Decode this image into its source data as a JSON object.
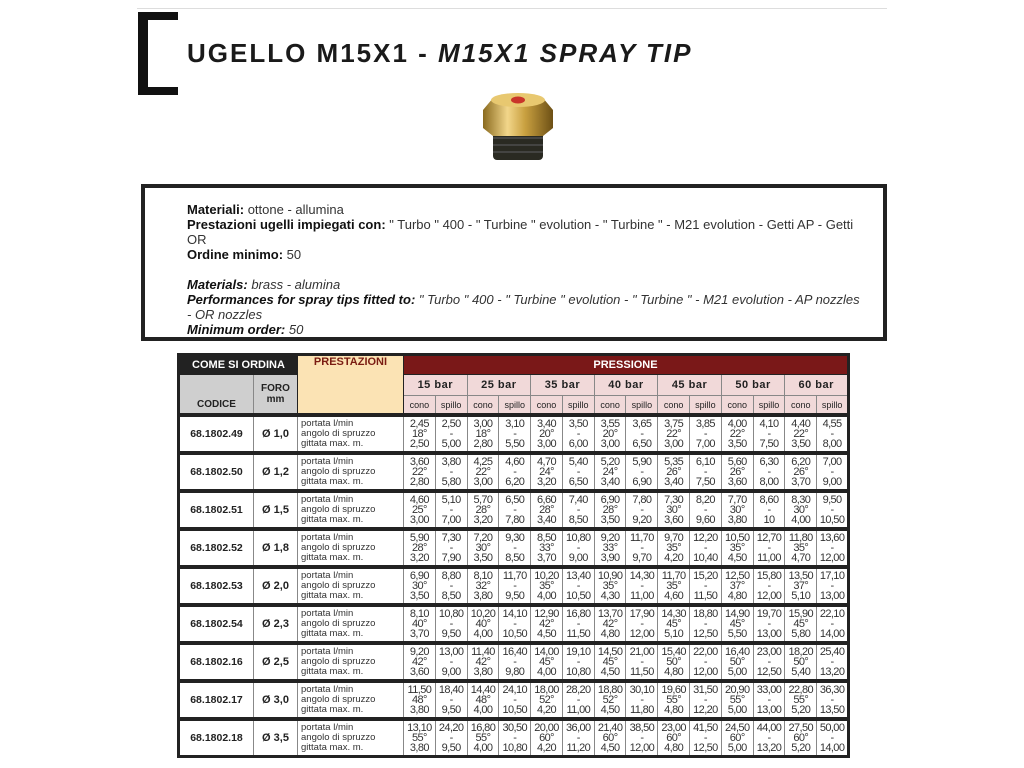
{
  "header": {
    "title_plain": "UGELLO M15X1 - ",
    "title_italic": "M15X1 SPRAY TIP"
  },
  "info": {
    "it": {
      "materials_label": "Materiali:",
      "materials": " ottone - allumina",
      "performance_label": "Prestazioni ugelli impiegati con:",
      "performance": " \" Turbo \" 400 - \" Turbine \" evolution - \" Turbine \" - M21 evolution - Getti AP - Getti OR",
      "min_order_label": "Ordine minimo:",
      "min_order": " 50"
    },
    "en": {
      "materials_label": "Materials:",
      "materials": " brass - alumina",
      "performance_label": "Performances for spray tips fitted to:",
      "performance": " \" Turbo \" 400 - \" Turbine \" evolution - \" Turbine \" - M21 evolution - AP nozzles - OR nozzles",
      "min_order_label": "Minimum order:",
      "min_order": " 50"
    }
  },
  "table": {
    "how_to_order": "COME SI ORDINA",
    "performance": "PRESTAZIONI",
    "pressure": "PRESSIONE",
    "code_header": "CODICE",
    "bore_header": "FORO",
    "bore_unit": "mm",
    "pressures": [
      "15 bar",
      "25 bar",
      "35 bar",
      "40 bar",
      "45 bar",
      "50 bar",
      "60 bar"
    ],
    "sub_cone": "cono",
    "sub_pin": "spillo",
    "perf_labels": [
      "portata l/min",
      "angolo di spruzzo",
      "gittata max. m."
    ],
    "rows": [
      {
        "code": "68.1802.49",
        "bore": "Ø 1,0",
        "values": [
          [
            "2,45",
            "18°",
            "2,50"
          ],
          [
            "2,50",
            "-",
            "5,00"
          ],
          [
            "3,00",
            "18°",
            "2,80"
          ],
          [
            "3,10",
            "-",
            "5,50"
          ],
          [
            "3,40",
            "20°",
            "3,00"
          ],
          [
            "3,50",
            "-",
            "6,00"
          ],
          [
            "3,55",
            "20°",
            "3,00"
          ],
          [
            "3,65",
            "-",
            "6,50"
          ],
          [
            "3,75",
            "22°",
            "3,00"
          ],
          [
            "3,85",
            "-",
            "7,00"
          ],
          [
            "4,00",
            "22°",
            "3,50"
          ],
          [
            "4,10",
            "-",
            "7,50"
          ],
          [
            "4,40",
            "22°",
            "3,50"
          ],
          [
            "4,55",
            "-",
            "8,00"
          ]
        ]
      },
      {
        "code": "68.1802.50",
        "bore": "Ø 1,2",
        "values": [
          [
            "3,60",
            "22°",
            "2,80"
          ],
          [
            "3,80",
            "-",
            "5,80"
          ],
          [
            "4,25",
            "22°",
            "3,00"
          ],
          [
            "4,60",
            "-",
            "6,20"
          ],
          [
            "4,70",
            "24°",
            "3,20"
          ],
          [
            "5,40",
            "-",
            "6,50"
          ],
          [
            "5,20",
            "24°",
            "3,40"
          ],
          [
            "5,90",
            "-",
            "6,90"
          ],
          [
            "5,35",
            "26°",
            "3,40"
          ],
          [
            "6,10",
            "-",
            "7,50"
          ],
          [
            "5,60",
            "26°",
            "3,60"
          ],
          [
            "6,30",
            "-",
            "8,00"
          ],
          [
            "6,20",
            "26°",
            "3,70"
          ],
          [
            "7,00",
            "-",
            "9,00"
          ]
        ]
      },
      {
        "code": "68.1802.51",
        "bore": "Ø 1,5",
        "values": [
          [
            "4,60",
            "25°",
            "3,00"
          ],
          [
            "5,10",
            "-",
            "7,00"
          ],
          [
            "5,70",
            "28°",
            "3,20"
          ],
          [
            "6,50",
            "-",
            "7,80"
          ],
          [
            "6,60",
            "28°",
            "3,40"
          ],
          [
            "7,40",
            "-",
            "8,50"
          ],
          [
            "6,90",
            "28°",
            "3,50"
          ],
          [
            "7,80",
            "-",
            "9,20"
          ],
          [
            "7,30",
            "30°",
            "3,60"
          ],
          [
            "8,20",
            "-",
            "9,60"
          ],
          [
            "7,70",
            "30°",
            "3,80"
          ],
          [
            "8,60",
            "-",
            "10"
          ],
          [
            "8,30",
            "30°",
            "4,00"
          ],
          [
            "9,50",
            "-",
            "10,50"
          ]
        ]
      },
      {
        "code": "68.1802.52",
        "bore": "Ø 1,8",
        "values": [
          [
            "5,90",
            "28°",
            "3,20"
          ],
          [
            "7,30",
            "-",
            "7,90"
          ],
          [
            "7,20",
            "30°",
            "3,50"
          ],
          [
            "9,30",
            "-",
            "8,50"
          ],
          [
            "8,50",
            "33°",
            "3,70"
          ],
          [
            "10,80",
            "-",
            "9,00"
          ],
          [
            "9,20",
            "33°",
            "3,90"
          ],
          [
            "11,70",
            "-",
            "9,70"
          ],
          [
            "9,70",
            "35°",
            "4,20"
          ],
          [
            "12,20",
            "-",
            "10,40"
          ],
          [
            "10,50",
            "35°",
            "4,50"
          ],
          [
            "12,70",
            "-",
            "11,00"
          ],
          [
            "11,80",
            "35°",
            "4,70"
          ],
          [
            "13,60",
            "-",
            "12,00"
          ]
        ]
      },
      {
        "code": "68.1802.53",
        "bore": "Ø 2,0",
        "values": [
          [
            "6,90",
            "30°",
            "3,50"
          ],
          [
            "8,80",
            "-",
            "8,50"
          ],
          [
            "8,10",
            "32°",
            "3,80"
          ],
          [
            "11,70",
            "-",
            "9,50"
          ],
          [
            "10,20",
            "35°",
            "4,00"
          ],
          [
            "13,40",
            "-",
            "10,50"
          ],
          [
            "10,90",
            "35°",
            "4,30"
          ],
          [
            "14,30",
            "-",
            "11,00"
          ],
          [
            "11,70",
            "35°",
            "4,60"
          ],
          [
            "15,20",
            "-",
            "11,50"
          ],
          [
            "12,50",
            "37°",
            "4,80"
          ],
          [
            "15,80",
            "-",
            "12,00"
          ],
          [
            "13,50",
            "37°",
            "5,10"
          ],
          [
            "17,10",
            "-",
            "13,00"
          ]
        ]
      },
      {
        "code": "68.1802.54",
        "bore": "Ø 2,3",
        "values": [
          [
            "8,10",
            "40°",
            "3,70"
          ],
          [
            "10,80",
            "-",
            "9,50"
          ],
          [
            "10,20",
            "40°",
            "4,00"
          ],
          [
            "14,10",
            "-",
            "10,50"
          ],
          [
            "12,90",
            "42°",
            "4,50"
          ],
          [
            "16,80",
            "-",
            "11,50"
          ],
          [
            "13,70",
            "42°",
            "4,80"
          ],
          [
            "17,90",
            "-",
            "12,00"
          ],
          [
            "14,30",
            "45°",
            "5,10"
          ],
          [
            "18,80",
            "-",
            "12,50"
          ],
          [
            "14,90",
            "45°",
            "5,50"
          ],
          [
            "19,70",
            "-",
            "13,00"
          ],
          [
            "15,90",
            "45°",
            "5,80"
          ],
          [
            "22,10",
            "-",
            "14,00"
          ]
        ]
      },
      {
        "code": "68.1802.16",
        "bore": "Ø 2,5",
        "values": [
          [
            "9,20",
            "42°",
            "3,60"
          ],
          [
            "13,00",
            "-",
            "9,00"
          ],
          [
            "11,40",
            "42°",
            "3,80"
          ],
          [
            "16,40",
            "-",
            "9,80"
          ],
          [
            "14,00",
            "45°",
            "4,00"
          ],
          [
            "19,10",
            "-",
            "10,80"
          ],
          [
            "14,50",
            "45°",
            "4,50"
          ],
          [
            "21,00",
            "-",
            "11,50"
          ],
          [
            "15,40",
            "50°",
            "4,80"
          ],
          [
            "22,00",
            "-",
            "12,00"
          ],
          [
            "16,40",
            "50°",
            "5,00"
          ],
          [
            "23,00",
            "-",
            "12,50"
          ],
          [
            "18,20",
            "50°",
            "5,40"
          ],
          [
            "25,40",
            "-",
            "13,20"
          ]
        ]
      },
      {
        "code": "68.1802.17",
        "bore": "Ø 3,0",
        "values": [
          [
            "11,50",
            "48°",
            "3,80"
          ],
          [
            "18,40",
            "-",
            "9,50"
          ],
          [
            "14,40",
            "48°",
            "4,00"
          ],
          [
            "24,10",
            "-",
            "10,50"
          ],
          [
            "18,00",
            "52°",
            "4,20"
          ],
          [
            "28,20",
            "-",
            "11,00"
          ],
          [
            "18,80",
            "52°",
            "4,50"
          ],
          [
            "30,10",
            "-",
            "11,80"
          ],
          [
            "19,60",
            "55°",
            "4,80"
          ],
          [
            "31,50",
            "-",
            "12,20"
          ],
          [
            "20,90",
            "55°",
            "5,00"
          ],
          [
            "33,00",
            "-",
            "13,00"
          ],
          [
            "22,80",
            "55°",
            "5,20"
          ],
          [
            "36,30",
            "-",
            "13,50"
          ]
        ]
      },
      {
        "code": "68.1802.18",
        "bore": "Ø 3,5",
        "values": [
          [
            "13,10",
            "55°",
            "3,80"
          ],
          [
            "24,20",
            "-",
            "9,50"
          ],
          [
            "16,80",
            "55°",
            "4,00"
          ],
          [
            "30,50",
            "-",
            "10,80"
          ],
          [
            "20,00",
            "60°",
            "4,20"
          ],
          [
            "36,00",
            "-",
            "11,20"
          ],
          [
            "21,40",
            "60°",
            "4,50"
          ],
          [
            "38,50",
            "-",
            "12,00"
          ],
          [
            "23,00",
            "60°",
            "4,80"
          ],
          [
            "41,50",
            "-",
            "12,50"
          ],
          [
            "24,50",
            "60°",
            "5,00"
          ],
          [
            "44,00",
            "-",
            "13,20"
          ],
          [
            "27,50",
            "60°",
            "5,20"
          ],
          [
            "50,00",
            "-",
            "14,00"
          ]
        ]
      }
    ]
  },
  "colors": {
    "pressure_band": "#7a1818",
    "performance_header": "#fbe3b4",
    "bar_header": "#f1d9d9",
    "frame": "#222222"
  }
}
